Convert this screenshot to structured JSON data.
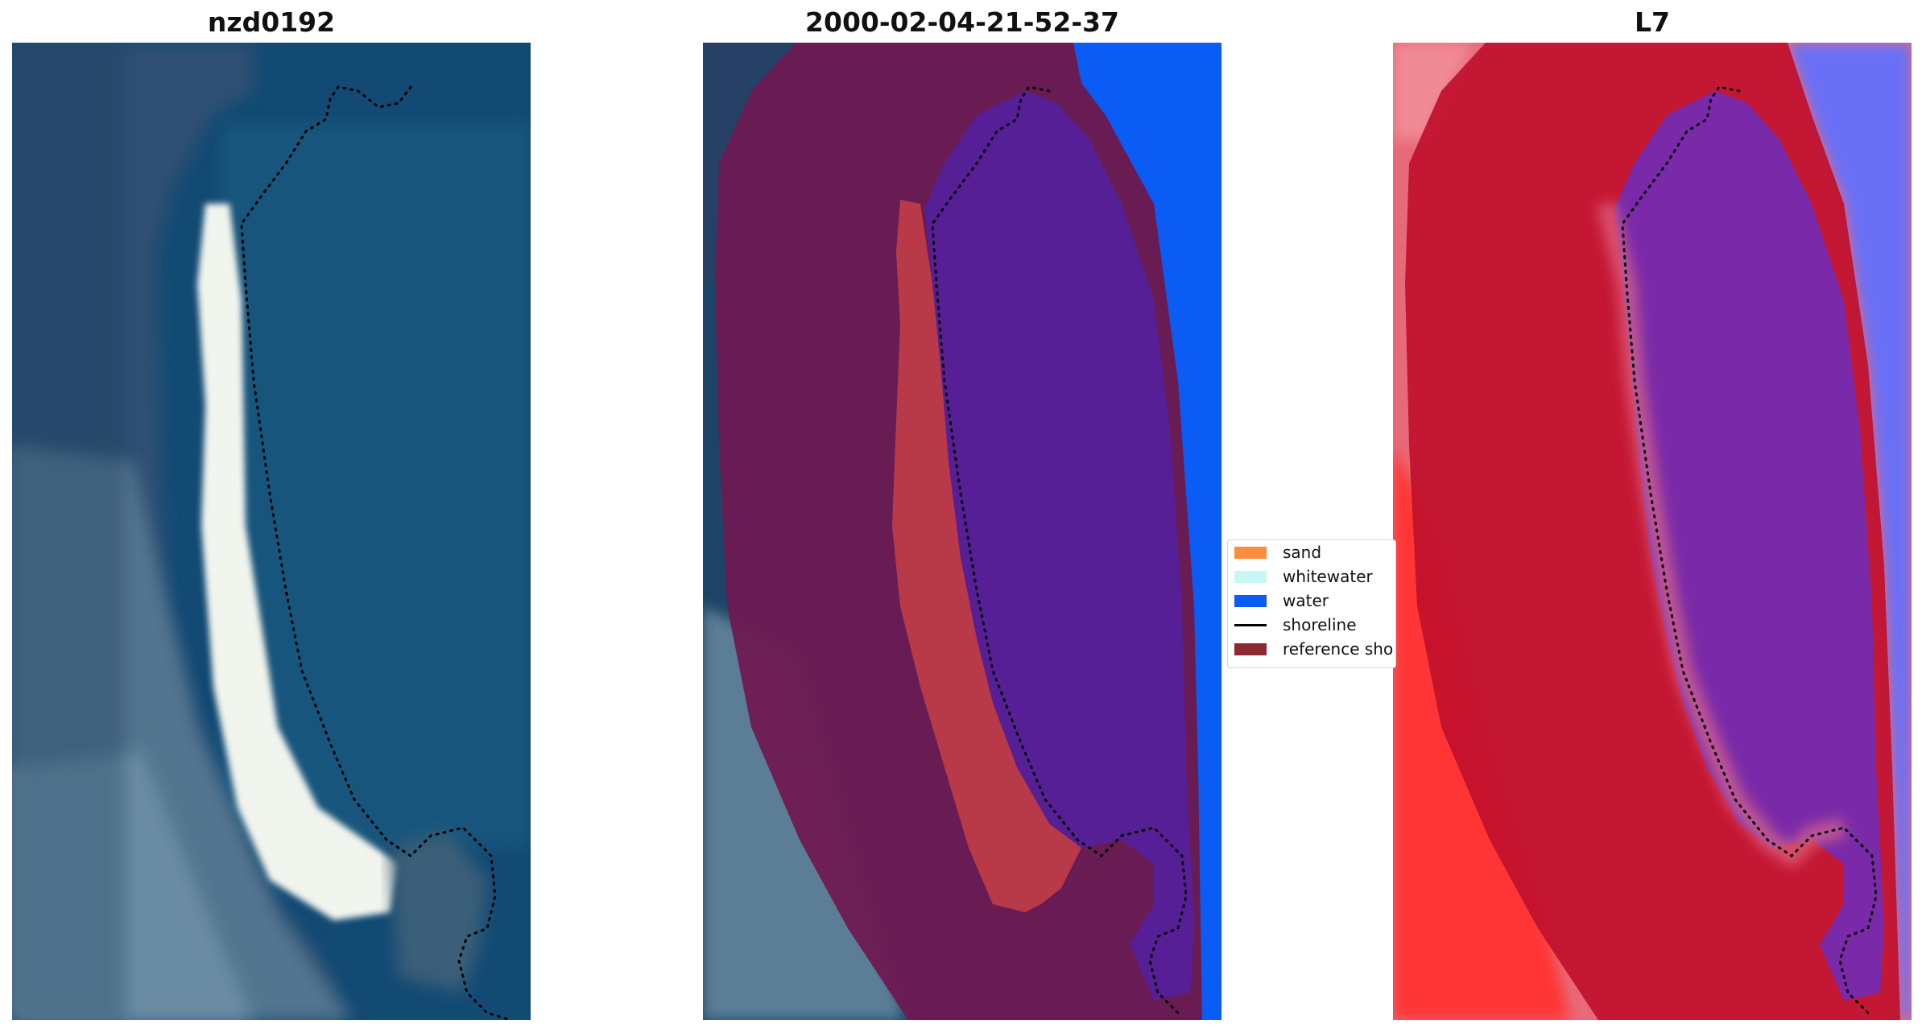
{
  "panels": {
    "left_title": "nzd0192",
    "middle_title": "2000-02-04-21-52-37",
    "right_title": "L7"
  },
  "legend": {
    "items": [
      {
        "label": "sand",
        "color": "#ff8c3f",
        "kind": "patch"
      },
      {
        "label": "whitewater",
        "color": "#c9f7f5",
        "kind": "patch"
      },
      {
        "label": "water",
        "color": "#0a5cf5",
        "kind": "patch"
      },
      {
        "label": "shoreline",
        "color": "#000000",
        "kind": "line"
      },
      {
        "label": "reference sho",
        "color": "#8c2a33",
        "kind": "patch"
      }
    ]
  },
  "colors": {
    "ocean": "#124a73",
    "sand_rgb": "#f2f4ee",
    "land_rgb": "#5d7f99",
    "buffer_overlay": "#6e1a52",
    "classified_water": "#0a5cf5",
    "classified_sand": "#b83a48",
    "classified_inner_water": "#571f96",
    "index_red": "#c0102e",
    "index_land": "#ff4040",
    "index_water_purple": "#7a2aa8",
    "index_blue": "#6a6ff6"
  }
}
